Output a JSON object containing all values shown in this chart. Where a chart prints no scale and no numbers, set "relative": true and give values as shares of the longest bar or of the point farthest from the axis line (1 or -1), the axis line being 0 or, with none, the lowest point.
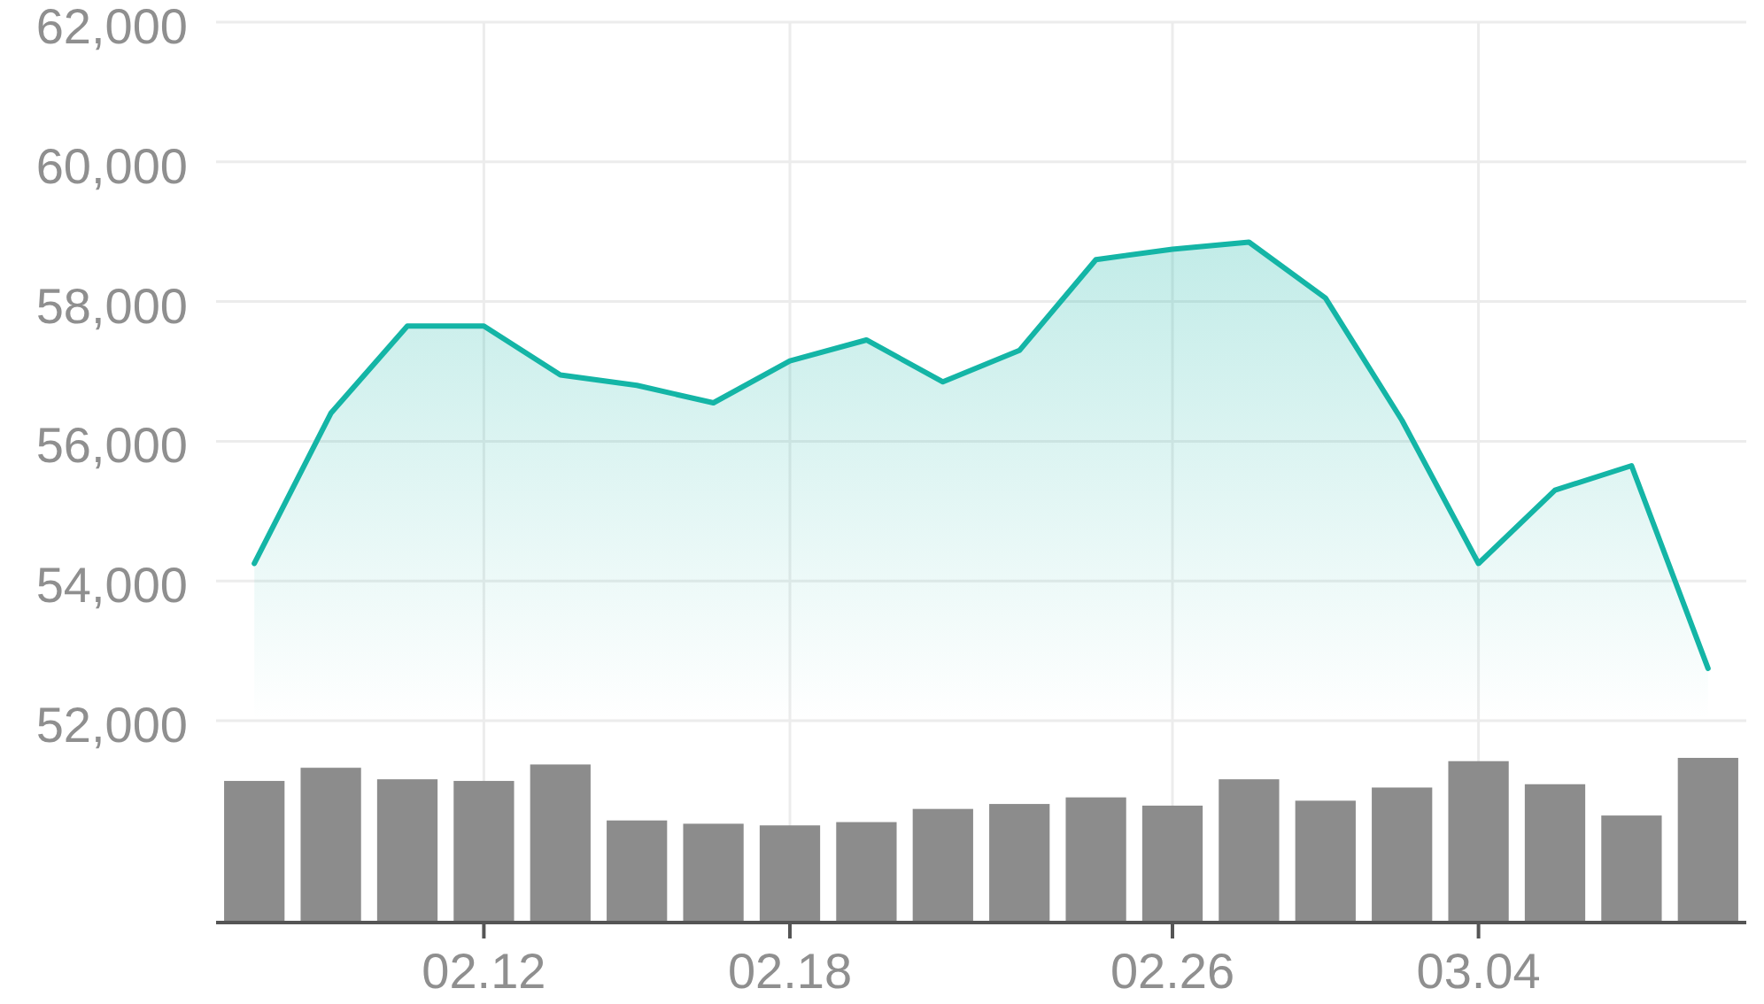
{
  "chart_data": [
    {
      "type": "area",
      "categories": [
        null,
        null,
        null,
        "02.12",
        null,
        null,
        null,
        "02.18",
        null,
        null,
        null,
        null,
        "02.26",
        null,
        null,
        null,
        "03.04",
        null,
        null,
        null
      ],
      "series": [
        {
          "color": "#14b5a6",
          "values": [
            54250,
            56400,
            57650,
            57650,
            56950,
            56800,
            56550,
            57150,
            57450,
            56850,
            57300,
            58600,
            58750,
            58850,
            58050,
            56300,
            54250,
            55300,
            55650,
            52750
          ]
        }
      ],
      "ylim": [
        52000,
        62000
      ],
      "yticks": [
        {
          "value": 52000,
          "label": "52,000"
        },
        {
          "value": 54000,
          "label": "54,000"
        },
        {
          "value": 56000,
          "label": "56,000"
        },
        {
          "value": 58000,
          "label": "58,000"
        },
        {
          "value": 60000,
          "label": "60,000"
        },
        {
          "value": 62000,
          "label": "62,000"
        }
      ],
      "grid": true,
      "tick_labels": "y"
    },
    {
      "type": "bar",
      "categories": [
        null,
        null,
        null,
        "02.12",
        null,
        null,
        null,
        "02.18",
        null,
        null,
        null,
        null,
        "02.26",
        null,
        null,
        null,
        "03.04",
        null,
        null,
        null
      ],
      "values": [
        0.86,
        0.94,
        0.87,
        0.86,
        0.96,
        0.62,
        0.6,
        0.59,
        0.61,
        0.69,
        0.72,
        0.76,
        0.71,
        0.87,
        0.74,
        0.82,
        0.98,
        0.84,
        0.65,
        1
      ],
      "color": "#8c8c8c",
      "relative": true,
      "grid": "x",
      "tick_labels": "x"
    }
  ]
}
